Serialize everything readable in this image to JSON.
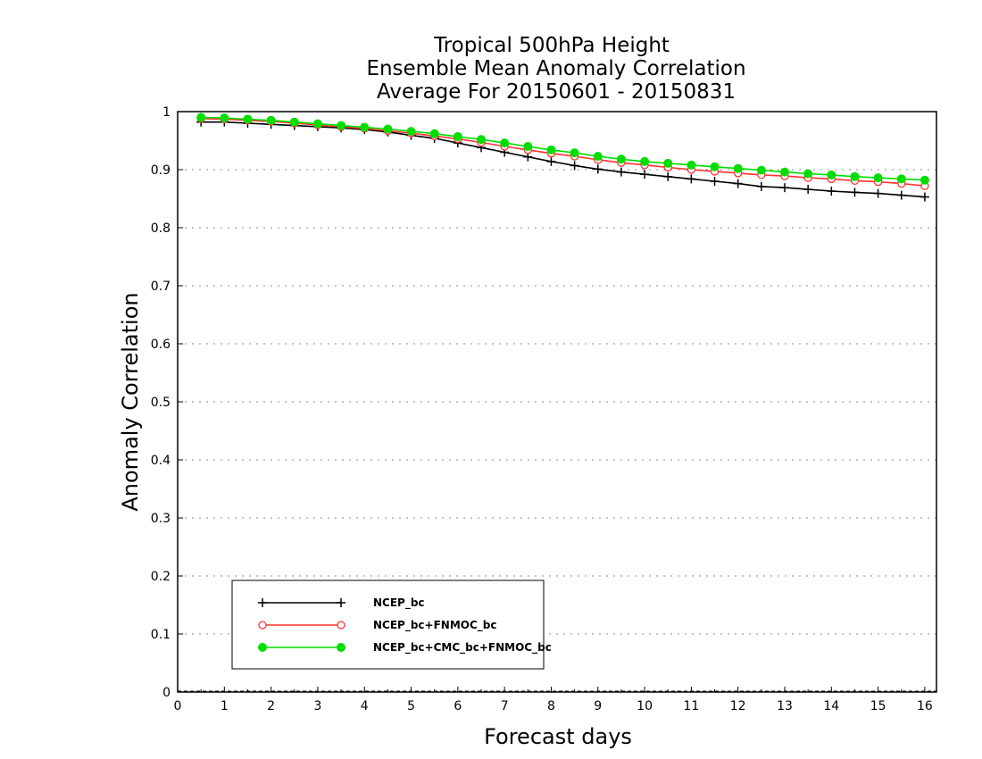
{
  "chart_data": {
    "type": "line",
    "title": "Tropical 500hPa Height",
    "subtitle": "Ensemble Mean Anomaly Correlation",
    "subtitle2": "Average For 20150601 - 20150831",
    "xlabel": "Forecast days",
    "ylabel": "Anomaly Correlation",
    "xlim": [
      0,
      16.25
    ],
    "ylim": [
      0,
      1
    ],
    "xticks": [
      "0",
      "1",
      "2",
      "3",
      "4",
      "5",
      "6",
      "7",
      "8",
      "9",
      "10",
      "11",
      "12",
      "13",
      "14",
      "15",
      "16"
    ],
    "yticks": [
      "0",
      "0.1",
      "0.2",
      "0.3",
      "0.4",
      "0.5",
      "0.6",
      "0.7",
      "0.8",
      "0.9",
      "1"
    ],
    "grid": "horizontal-dotted",
    "legend": "bottom-left",
    "x": [
      0.5,
      1,
      1.5,
      2,
      2.5,
      3,
      3.5,
      4,
      4.5,
      5,
      5.5,
      6,
      6.5,
      7,
      7.5,
      8,
      8.5,
      9,
      9.5,
      10,
      10.5,
      11,
      11.5,
      12,
      12.5,
      13,
      13.5,
      14,
      14.5,
      15,
      15.5,
      16
    ],
    "series": [
      {
        "name": "NCEP_bc",
        "color": "#000000",
        "marker": "plus",
        "values": [
          0.982,
          0.982,
          0.98,
          0.978,
          0.976,
          0.974,
          0.972,
          0.969,
          0.965,
          0.959,
          0.954,
          0.946,
          0.938,
          0.93,
          0.922,
          0.914,
          0.907,
          0.901,
          0.896,
          0.892,
          0.888,
          0.884,
          0.88,
          0.876,
          0.871,
          0.869,
          0.866,
          0.863,
          0.861,
          0.859,
          0.856,
          0.853
        ]
      },
      {
        "name": "NCEP_bc+FNMOC_bc",
        "color": "#ff3333",
        "marker": "open-circle",
        "values": [
          0.988,
          0.987,
          0.985,
          0.983,
          0.98,
          0.977,
          0.974,
          0.971,
          0.967,
          0.963,
          0.958,
          0.953,
          0.947,
          0.94,
          0.934,
          0.928,
          0.923,
          0.917,
          0.912,
          0.908,
          0.904,
          0.9,
          0.897,
          0.894,
          0.891,
          0.889,
          0.886,
          0.884,
          0.881,
          0.879,
          0.876,
          0.872
        ]
      },
      {
        "name": "NCEP_bc+CMC_bc+FNMOC_bc",
        "color": "#00dd00",
        "marker": "filled-circle",
        "values": [
          0.99,
          0.989,
          0.987,
          0.985,
          0.982,
          0.979,
          0.976,
          0.973,
          0.97,
          0.966,
          0.962,
          0.957,
          0.952,
          0.946,
          0.94,
          0.934,
          0.929,
          0.923,
          0.918,
          0.914,
          0.911,
          0.908,
          0.905,
          0.902,
          0.899,
          0.896,
          0.893,
          0.891,
          0.888,
          0.886,
          0.884,
          0.882
        ]
      }
    ]
  }
}
